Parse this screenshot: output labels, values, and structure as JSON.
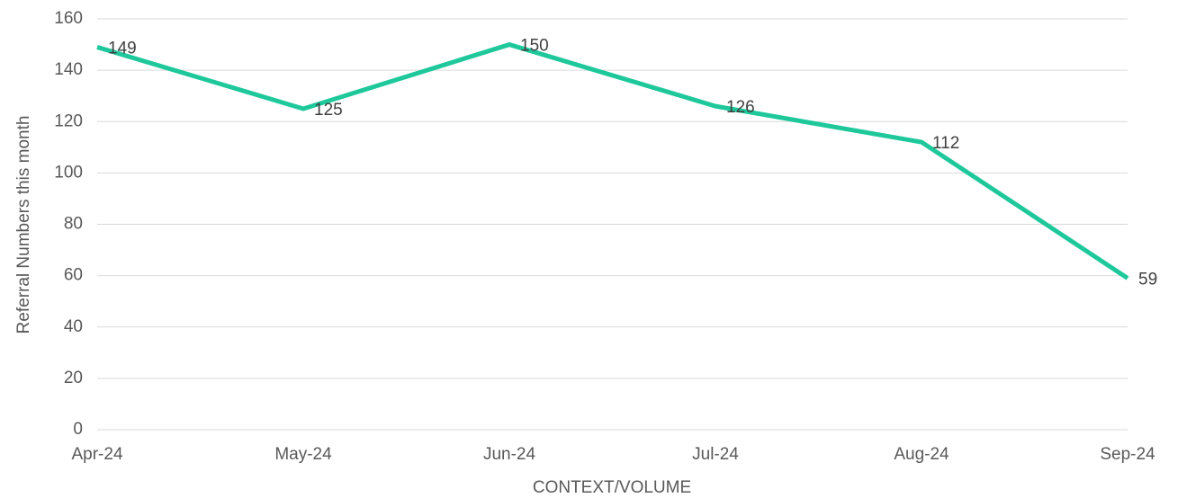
{
  "chart_data": {
    "type": "line",
    "categories": [
      "Apr-24",
      "May-24",
      "Jun-24",
      "Jul-24",
      "Aug-24",
      "Sep-24"
    ],
    "series": [
      {
        "name": "Referral Numbers this month",
        "color": "#1ec89b",
        "values": [
          149,
          125,
          150,
          126,
          112,
          59
        ]
      }
    ],
    "x_label": "CONTEXT/VOLUME",
    "y_label": "Referral Numbers this month",
    "ylim": [
      0,
      160
    ],
    "yticks": [
      0,
      20,
      40,
      60,
      80,
      100,
      120,
      140,
      160
    ],
    "grid": true
  }
}
